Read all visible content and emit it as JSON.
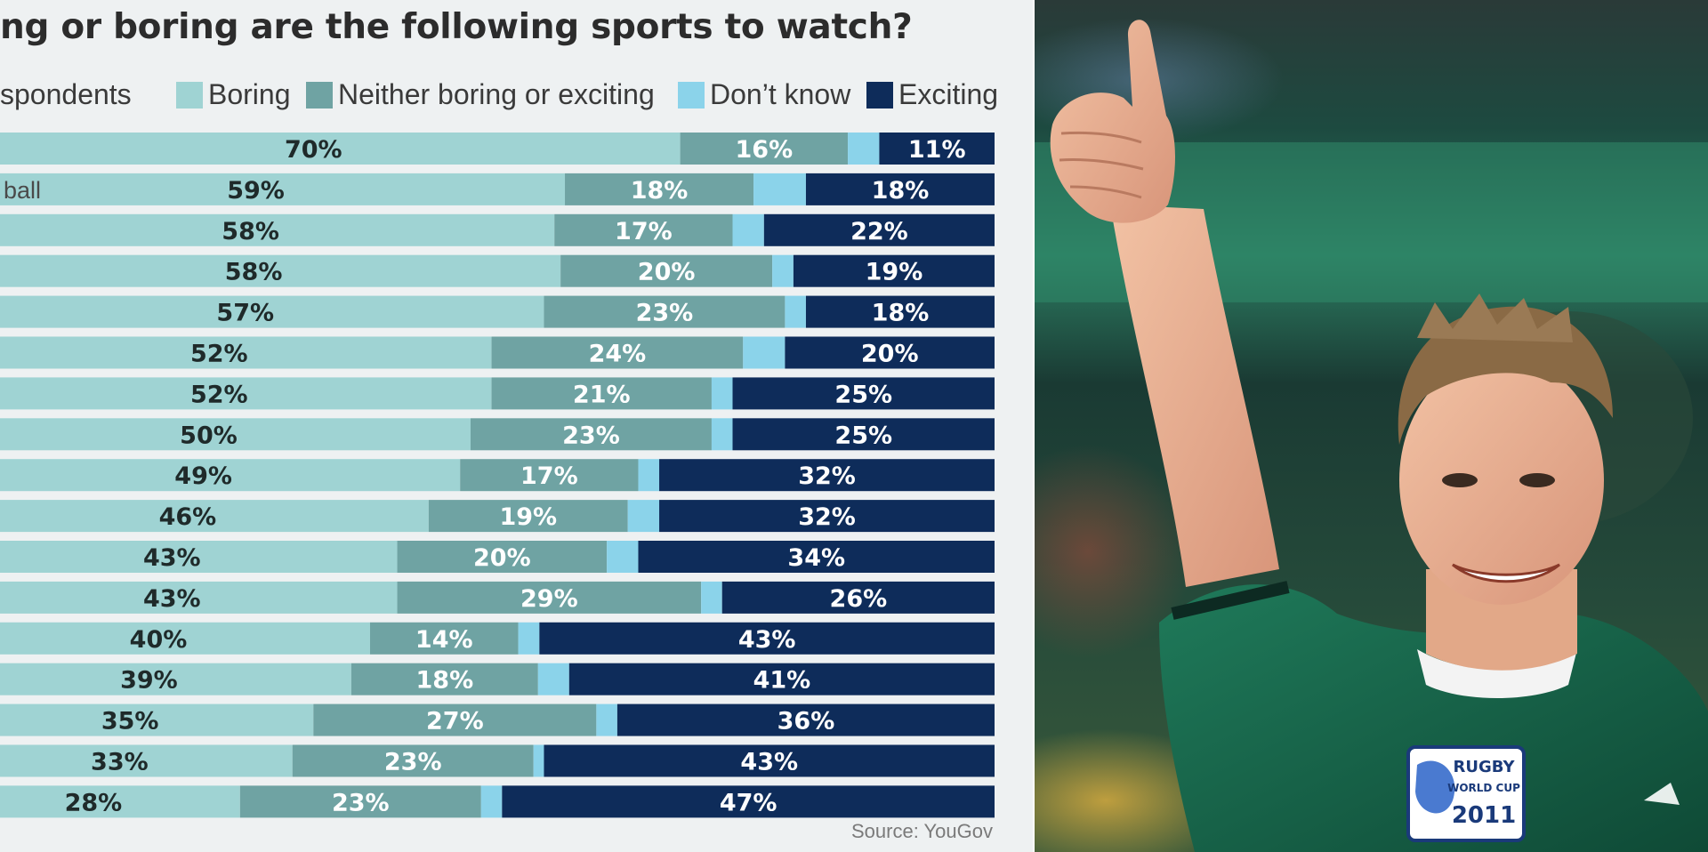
{
  "chart_data": {
    "type": "bar",
    "orientation": "horizontal",
    "stacked": true,
    "percent": true,
    "title": "ng or boring are the following sports to watch?",
    "legend_label": "spondents",
    "legend_position": "top",
    "categories": [
      "",
      "ball",
      "",
      "",
      "",
      "",
      "",
      "",
      "",
      "",
      "",
      "",
      "",
      "",
      "",
      "",
      ""
    ],
    "xlim": [
      0,
      100
    ],
    "series": [
      {
        "name": "Boring",
        "color": "#9fd3d3",
        "text_color": "#1f2a2a",
        "values": [
          70,
          59,
          58,
          58,
          57,
          52,
          52,
          50,
          49,
          46,
          43,
          43,
          40,
          39,
          35,
          33,
          28
        ]
      },
      {
        "name": "Neither boring or exciting",
        "color": "#6fa3a3",
        "text_color": "#ffffff",
        "values": [
          16,
          18,
          17,
          20,
          23,
          24,
          21,
          23,
          17,
          19,
          20,
          29,
          14,
          18,
          27,
          23,
          23
        ]
      },
      {
        "name": "Don’t know",
        "color": "#8bd3ea",
        "text_color": "#ffffff",
        "values": [
          3,
          5,
          3,
          2,
          2,
          4,
          2,
          2,
          2,
          3,
          3,
          2,
          2,
          3,
          2,
          1,
          2
        ]
      },
      {
        "name": "Exciting",
        "color": "#0e2c5a",
        "text_color": "#ffffff",
        "values": [
          11,
          18,
          22,
          19,
          18,
          20,
          25,
          25,
          32,
          32,
          34,
          26,
          43,
          41,
          36,
          43,
          47
        ]
      }
    ],
    "data_labels": [
      [
        "70%",
        "16%",
        "",
        "11%"
      ],
      [
        "59%",
        "18%",
        "",
        "18%"
      ],
      [
        "58%",
        "17%",
        "",
        "22%"
      ],
      [
        "58%",
        "20%",
        "",
        "19%"
      ],
      [
        "57%",
        "23%",
        "",
        "18%"
      ],
      [
        "52%",
        "24%",
        "",
        "20%"
      ],
      [
        "52%",
        "21%",
        "",
        "25%"
      ],
      [
        "50%",
        "23%",
        "",
        "25%"
      ],
      [
        "49%",
        "17%",
        "",
        "32%"
      ],
      [
        "46%",
        "19%",
        "",
        "32%"
      ],
      [
        "43%",
        "20%",
        "",
        "34%"
      ],
      [
        "43%",
        "29%",
        "",
        "26%"
      ],
      [
        "40%",
        "14%",
        "",
        "43%"
      ],
      [
        "39%",
        "18%",
        "",
        "41%"
      ],
      [
        "35%",
        "27%",
        "",
        "36%"
      ],
      [
        "33%",
        "23%",
        "",
        "43%"
      ],
      [
        "28%",
        "23%",
        "",
        "47%"
      ]
    ],
    "source": "Source: YouGov"
  },
  "photo": {
    "description_icon": "rugby-player-thumbs-up-photo",
    "badge_line1": "RUGBY",
    "badge_line2": "WORLD CUP",
    "badge_line3": "2011"
  }
}
